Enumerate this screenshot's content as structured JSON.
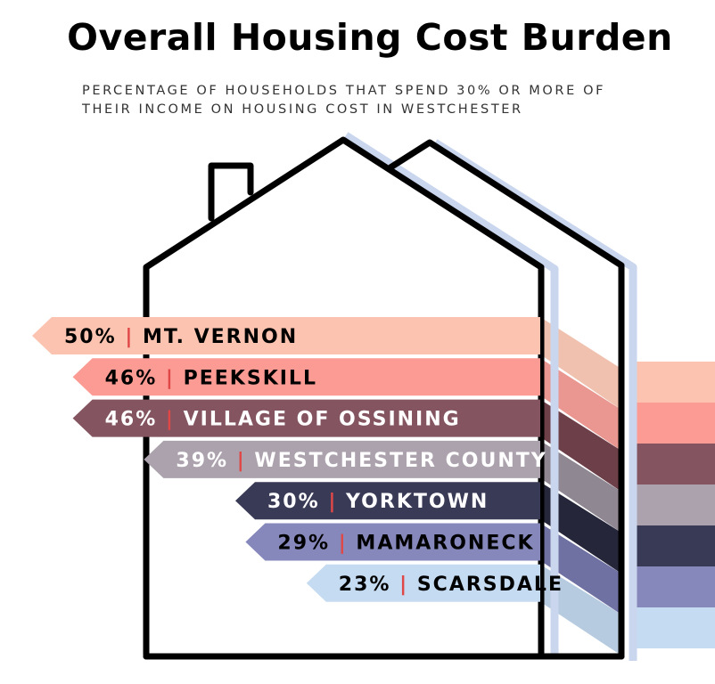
{
  "chart_data": {
    "type": "bar",
    "title": "Overall Housing Cost Burden",
    "subtitle_lines": [
      "PERCENTAGE OF HOUSEHOLDS THAT SPEND 30% OR MORE OF",
      "THEIR INCOME ON HOUSING COST IN WESTCHESTER"
    ],
    "xlabel": "",
    "ylabel": "",
    "unit": "%",
    "categories": [
      "MT. VERNON",
      "PEEKSKILL",
      "VILLAGE OF OSSINING",
      "WESTCHESTER COUNTY",
      "YORKTOWN",
      "MAMARONECK",
      "SCARSDALE"
    ],
    "values": [
      50,
      46,
      46,
      39,
      30,
      29,
      23
    ],
    "value_labels": [
      "50%",
      "46%",
      "46%",
      "39%",
      "30%",
      "29%",
      "23%"
    ],
    "separator": "|",
    "colors": [
      "#fcc4b0",
      "#fb9b94",
      "#845560",
      "#aca2ad",
      "#393a56",
      "#8688bb",
      "#c5dbf1"
    ],
    "shadow_colors": [
      "#f0c1ae",
      "#e99790",
      "#6c3f49",
      "#8f8893",
      "#25263a",
      "#6f71a3",
      "#b7cbe0"
    ],
    "text_colors": [
      "#000000",
      "#000000",
      "#ffffff",
      "#ffffff",
      "#ffffff",
      "#000000",
      "#000000"
    ],
    "separator_color": "#e04848",
    "house_shadow_color": "#c9d6ee"
  }
}
